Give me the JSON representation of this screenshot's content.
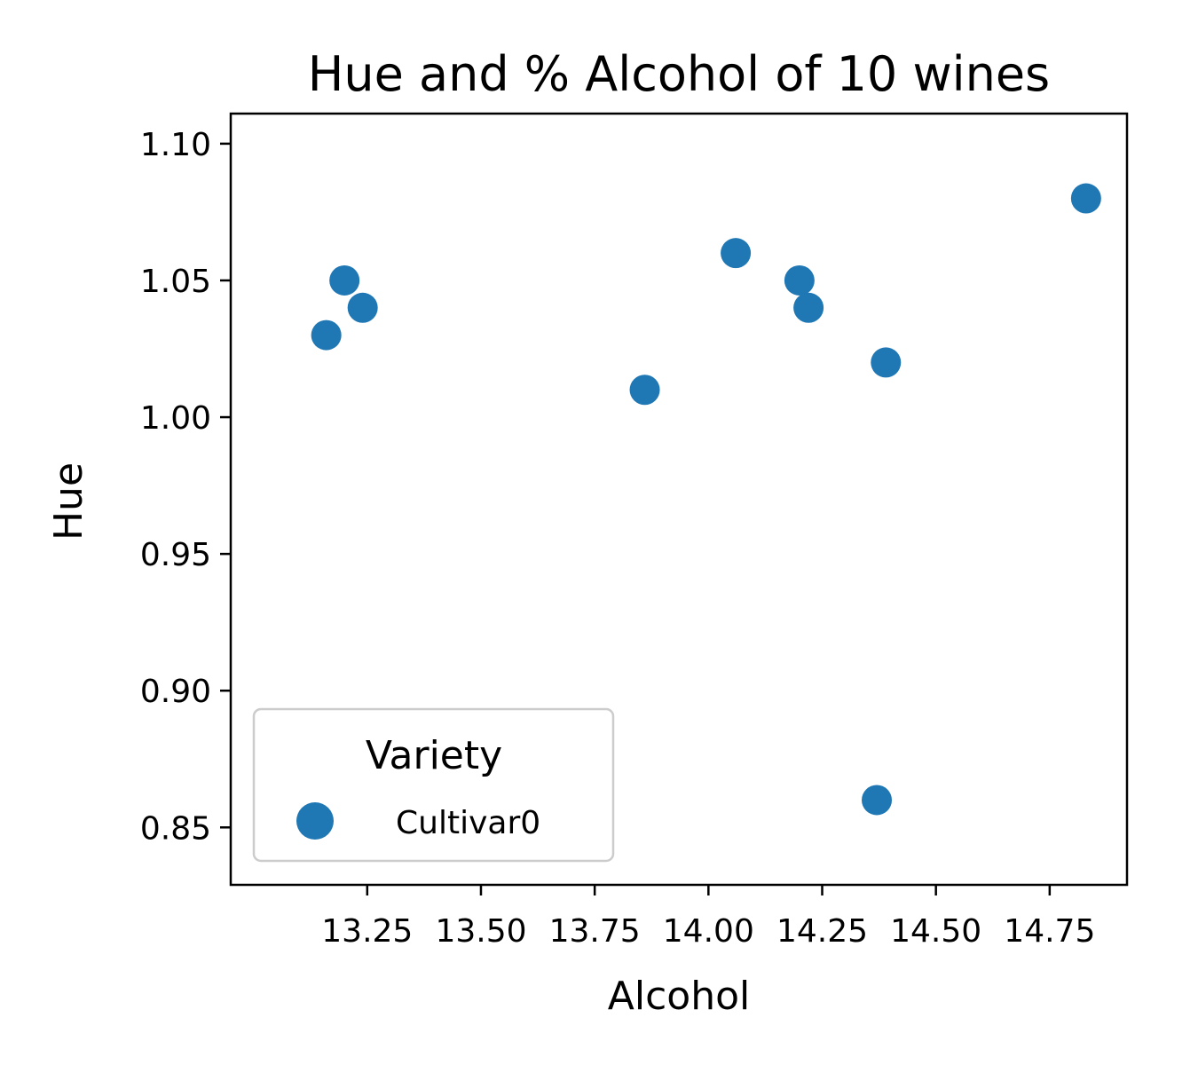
{
  "chart_data": {
    "type": "scatter",
    "title": "Hue and % Alcohol of 10 wines",
    "xlabel": "Alcohol",
    "ylabel": "Hue",
    "xlim": [
      12.95,
      14.92
    ],
    "ylim": [
      0.829,
      1.111
    ],
    "xticks": [
      13.25,
      13.5,
      13.75,
      14.0,
      14.25,
      14.5,
      14.75
    ],
    "xtick_labels": [
      "13.25",
      "13.50",
      "13.75",
      "14.00",
      "14.25",
      "14.50",
      "14.75"
    ],
    "yticks": [
      0.85,
      0.9,
      0.95,
      1.0,
      1.05,
      1.1
    ],
    "ytick_labels": [
      "0.85",
      "0.90",
      "0.95",
      "1.00",
      "1.05",
      "1.10"
    ],
    "grid": false,
    "legend": {
      "title": "Variety",
      "placement": "lower-left"
    },
    "series": [
      {
        "name": "Cultivar0",
        "color": "#1f77b4",
        "points": [
          {
            "x": 13.16,
            "y": 1.03
          },
          {
            "x": 13.2,
            "y": 1.05
          },
          {
            "x": 13.24,
            "y": 1.04
          },
          {
            "x": 13.86,
            "y": 1.01
          },
          {
            "x": 14.06,
            "y": 1.06
          },
          {
            "x": 14.2,
            "y": 1.05
          },
          {
            "x": 14.22,
            "y": 1.04
          },
          {
            "x": 14.37,
            "y": 0.86
          },
          {
            "x": 14.39,
            "y": 1.02
          },
          {
            "x": 14.83,
            "y": 1.08
          }
        ]
      }
    ]
  }
}
